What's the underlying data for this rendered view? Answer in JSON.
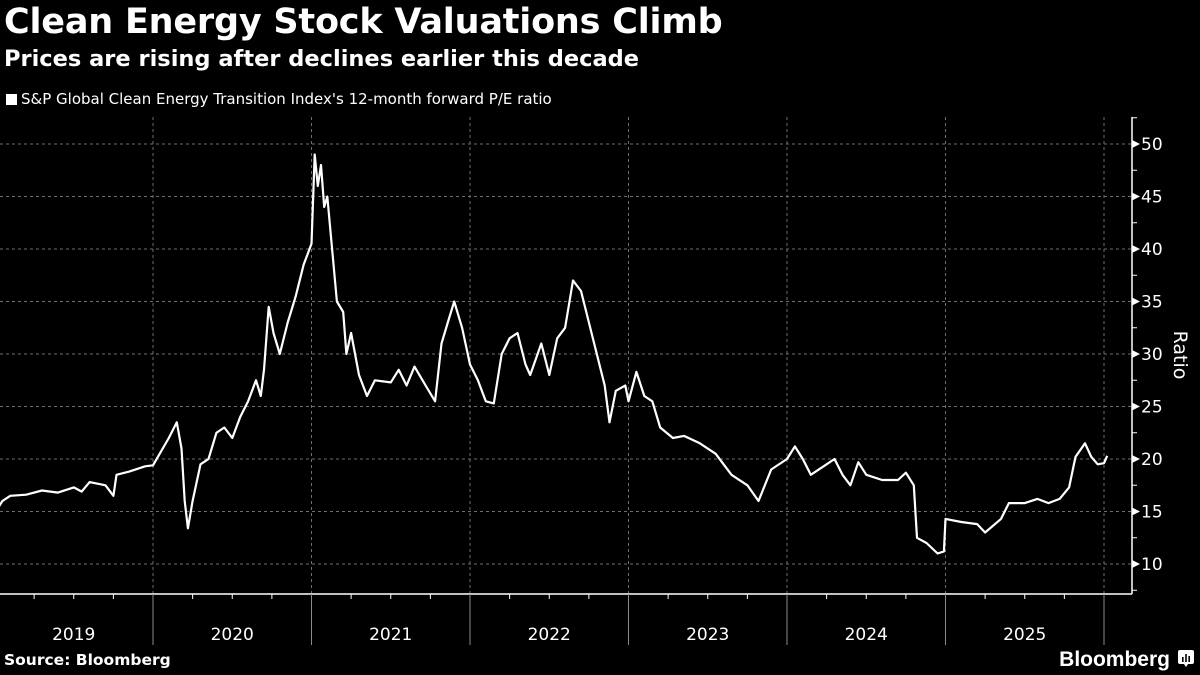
{
  "header": {
    "title": "Clean Energy Stock Valuations Climb",
    "subtitle": "Prices are rising after declines earlier this decade"
  },
  "footer": {
    "source": "Source: Bloomberg",
    "brand": "Bloomberg",
    "brand_icon": "bloomberg-chart-icon"
  },
  "colors": {
    "background": "#000000",
    "line": "#ffffff",
    "grid": "#6e6e6e"
  },
  "chart_data": {
    "type": "line",
    "title": "Clean Energy Stock Valuations Climb",
    "subtitle": "Prices are rising after declines earlier this decade",
    "xlabel": "",
    "ylabel": "Ratio",
    "ylim": [
      7.5,
      52.5
    ],
    "xlim": [
      2019.0,
      2026.15
    ],
    "grid": true,
    "legend_position": "top-left",
    "y_ticks": [
      10,
      15,
      20,
      25,
      30,
      35,
      40,
      45,
      50
    ],
    "x_tick_labels": [
      "2019",
      "2020",
      "2021",
      "2022",
      "2023",
      "2024",
      "2025"
    ],
    "year_boundaries": [
      2020,
      2021,
      2022,
      2023,
      2024,
      2025,
      2026
    ],
    "series": [
      {
        "name": "S&P Global Clean Energy Transition Index's 12-month forward P/E ratio",
        "x": [
          2019.0,
          2019.05,
          2019.1,
          2019.2,
          2019.3,
          2019.4,
          2019.5,
          2019.55,
          2019.6,
          2019.7,
          2019.75,
          2019.77,
          2019.85,
          2019.95,
          2020.0,
          2020.1,
          2020.15,
          2020.18,
          2020.2,
          2020.22,
          2020.25,
          2020.3,
          2020.35,
          2020.4,
          2020.45,
          2020.5,
          2020.55,
          2020.6,
          2020.65,
          2020.68,
          2020.7,
          2020.73,
          2020.76,
          2020.8,
          2020.85,
          2020.9,
          2020.95,
          2021.0,
          2021.02,
          2021.04,
          2021.06,
          2021.08,
          2021.1,
          2021.13,
          2021.16,
          2021.2,
          2021.22,
          2021.25,
          2021.3,
          2021.35,
          2021.4,
          2021.5,
          2021.55,
          2021.6,
          2021.65,
          2021.72,
          2021.78,
          2021.82,
          2021.86,
          2021.9,
          2021.95,
          2022.0,
          2022.05,
          2022.1,
          2022.15,
          2022.2,
          2022.25,
          2022.3,
          2022.35,
          2022.38,
          2022.45,
          2022.5,
          2022.55,
          2022.6,
          2022.65,
          2022.7,
          2022.75,
          2022.8,
          2022.85,
          2022.88,
          2022.92,
          2022.98,
          2023.0,
          2023.05,
          2023.1,
          2023.15,
          2023.2,
          2023.28,
          2023.35,
          2023.45,
          2023.55,
          2023.65,
          2023.75,
          2023.82,
          2023.9,
          2024.0,
          2024.05,
          2024.1,
          2024.15,
          2024.25,
          2024.3,
          2024.35,
          2024.4,
          2024.45,
          2024.5,
          2024.6,
          2024.7,
          2024.75,
          2024.8,
          2024.82,
          2024.88,
          2024.95,
          2024.99,
          2025.0,
          2025.1,
          2025.2,
          2025.25,
          2025.35,
          2025.4,
          2025.5,
          2025.58,
          2025.65,
          2025.72,
          2025.78,
          2025.82,
          2025.88,
          2025.92,
          2025.96,
          2026.0,
          2026.02
        ],
        "values": [
          14.8,
          16,
          16.5,
          16.6,
          17,
          16.8,
          17.3,
          16.9,
          17.8,
          17.5,
          16.5,
          18.5,
          18.8,
          19.3,
          19.4,
          22,
          23.5,
          21,
          16,
          13.4,
          16,
          19.5,
          20,
          22.5,
          23,
          22,
          24,
          25.5,
          27.5,
          26,
          28.5,
          34.5,
          32,
          30,
          33,
          35.5,
          38.5,
          40.5,
          49,
          46,
          48,
          44,
          45,
          40,
          35,
          34,
          30,
          32,
          28,
          26,
          27.5,
          27.3,
          28.5,
          27,
          28.8,
          27,
          25.5,
          31,
          33,
          35,
          32.5,
          29,
          27.5,
          25.5,
          25.3,
          30,
          31.5,
          32,
          29,
          28,
          31,
          28,
          31.5,
          32.5,
          37,
          36,
          33,
          30,
          27,
          23.5,
          26.5,
          27,
          25.5,
          28.3,
          26,
          25.5,
          23,
          22,
          22.2,
          21.5,
          20.5,
          18.5,
          17.5,
          16,
          19,
          20,
          21.2,
          20,
          18.5,
          19.5,
          20,
          18.5,
          17.5,
          19.7,
          18.5,
          18,
          18,
          18.7,
          17.5,
          12.5,
          12,
          11,
          11.2,
          14.3,
          14,
          13.8,
          13,
          14.3,
          15.8,
          15.8,
          16.2,
          15.8,
          16.2,
          17.3,
          20.2,
          21.5,
          20.2,
          19.5,
          19.6,
          20.3
        ]
      }
    ]
  }
}
